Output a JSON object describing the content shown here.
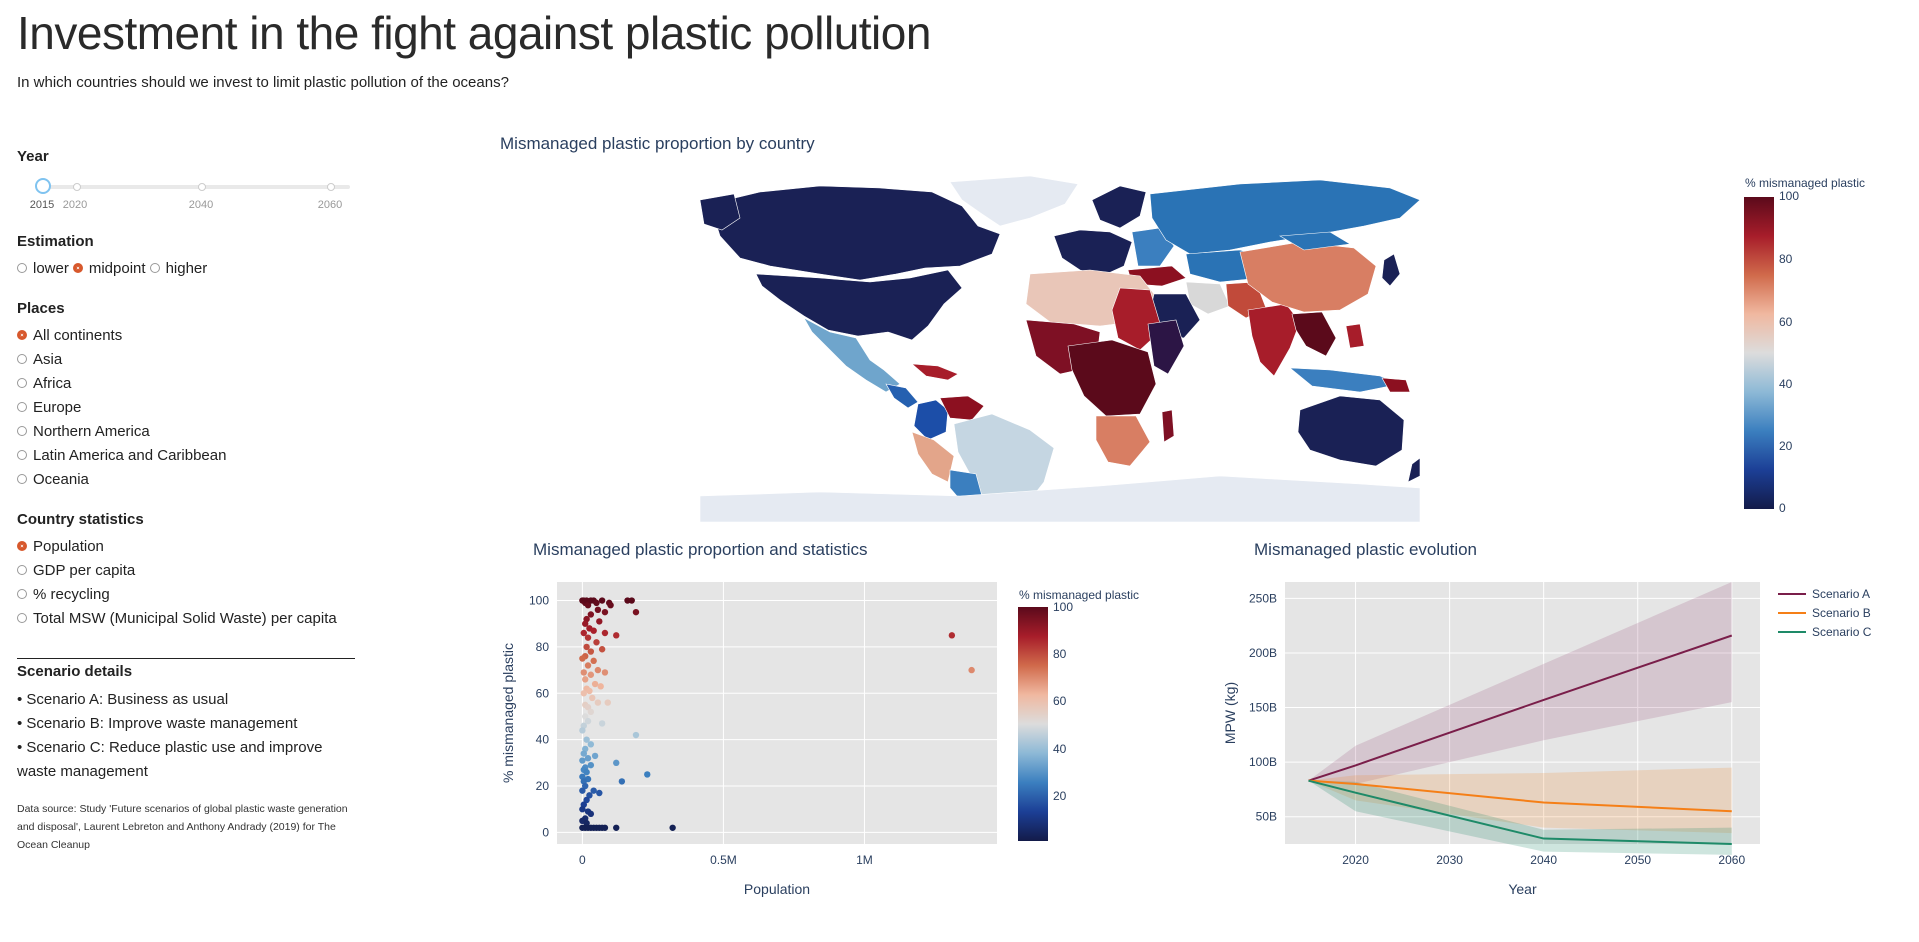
{
  "page": {
    "title": "Investment in the fight against plastic pollution",
    "subtitle": "In which countries should we invest to limit plastic pollution of the oceans?"
  },
  "year_filter": {
    "label": "Year",
    "marks": [
      "2015",
      "2020",
      "2040",
      "2060"
    ],
    "selected": "2015"
  },
  "estimation": {
    "label": "Estimation",
    "options": [
      "lower",
      "midpoint",
      "higher"
    ],
    "selected": "midpoint"
  },
  "places": {
    "label": "Places",
    "options": [
      "All continents",
      "Asia",
      "Africa",
      "Europe",
      "Northern America",
      "Latin America and Caribbean",
      "Oceania"
    ],
    "selected": "All continents"
  },
  "country_stats": {
    "label": "Country statistics",
    "options": [
      "Population",
      "GDP per capita",
      "% recycling",
      "Total MSW (Municipal Solid Waste) per capita"
    ],
    "selected": "Population"
  },
  "scenarios": {
    "heading": "Scenario details",
    "items": [
      "• Scenario A: Business as usual",
      "• Scenario B: Improve waste management",
      "• Scenario C: Reduce plastic use and improve waste management"
    ]
  },
  "source_note": "Data source: Study 'Future scenarios of global plastic waste generation and disposal', Laurent Lebreton and Anthony Andrady (2019) for The Ocean Cleanup",
  "colors": {
    "accent": "#d7582c",
    "plot_bg": "#e5e5e5",
    "scenario_a": "#7a1e4a",
    "scenario_b": "#f57f17",
    "scenario_c": "#1e8a68",
    "scale": [
      "#131b49",
      "#1c3f96",
      "#3b7fbf",
      "#8db9d6",
      "#dcdcdc",
      "#f0b8a0",
      "#d06a4b",
      "#a71d2a",
      "#5b0a1b"
    ]
  },
  "map": {
    "title": "Mismanaged plastic proportion by country",
    "colorbar_title": "% mismanaged plastic",
    "colorbar_ticks": [
      "100",
      "80",
      "60",
      "40",
      "20",
      "0"
    ]
  },
  "chart_data": [
    {
      "type": "scatter",
      "title": "Mismanaged plastic proportion and statistics",
      "xlabel": "Population",
      "ylabel": "% mismanaged plastic",
      "xlim": [
        -90000,
        1470000
      ],
      "ylim": [
        -5,
        108
      ],
      "x_ticks": [
        {
          "v": 0,
          "t": "0"
        },
        {
          "v": 500000,
          "t": "0.5M"
        },
        {
          "v": 1000000,
          "t": "1M"
        }
      ],
      "y_ticks": [
        0,
        20,
        40,
        60,
        80,
        100
      ],
      "colorbar_title": "% mismanaged plastic",
      "colorbar_ticks": [
        "100",
        "80",
        "60",
        "40",
        "20"
      ],
      "points": [
        [
          0,
          100
        ],
        [
          5000,
          100
        ],
        [
          10000,
          99
        ],
        [
          15000,
          100
        ],
        [
          20000,
          98
        ],
        [
          30000,
          100
        ],
        [
          40000,
          100
        ],
        [
          50000,
          99
        ],
        [
          70000,
          100
        ],
        [
          95000,
          99
        ],
        [
          160000,
          100
        ],
        [
          175000,
          100
        ],
        [
          190000,
          95
        ],
        [
          100000,
          98
        ],
        [
          55000,
          96
        ],
        [
          80000,
          95
        ],
        [
          30000,
          94
        ],
        [
          15000,
          92
        ],
        [
          60000,
          91
        ],
        [
          10000,
          90
        ],
        [
          25000,
          88
        ],
        [
          120000,
          85
        ],
        [
          40000,
          87
        ],
        [
          80000,
          86
        ],
        [
          5000,
          86
        ],
        [
          20000,
          84
        ],
        [
          50000,
          82
        ],
        [
          15000,
          80
        ],
        [
          70000,
          79
        ],
        [
          30000,
          78
        ],
        [
          10000,
          76
        ],
        [
          0,
          75
        ],
        [
          40000,
          74
        ],
        [
          20000,
          72
        ],
        [
          55000,
          70
        ],
        [
          5000,
          69
        ],
        [
          30000,
          68
        ],
        [
          80000,
          69
        ],
        [
          10000,
          66
        ],
        [
          45000,
          64
        ],
        [
          65000,
          63
        ],
        [
          15000,
          62
        ],
        [
          25000,
          61
        ],
        [
          5000,
          60
        ],
        [
          35000,
          58
        ],
        [
          55000,
          56
        ],
        [
          10000,
          55
        ],
        [
          20000,
          54
        ],
        [
          90000,
          56
        ],
        [
          30000,
          52
        ],
        [
          10000,
          50
        ],
        [
          70000,
          47
        ],
        [
          20000,
          48
        ],
        [
          5000,
          46
        ],
        [
          190000,
          42
        ],
        [
          0,
          44
        ],
        [
          15000,
          40
        ],
        [
          30000,
          38
        ],
        [
          10000,
          36
        ],
        [
          5000,
          34
        ],
        [
          45000,
          33
        ],
        [
          20000,
          32
        ],
        [
          0,
          31
        ],
        [
          120000,
          30
        ],
        [
          30000,
          29
        ],
        [
          10000,
          28
        ],
        [
          5000,
          27
        ],
        [
          15000,
          26
        ],
        [
          230000,
          25
        ],
        [
          0,
          24
        ],
        [
          20000,
          23
        ],
        [
          140000,
          22
        ],
        [
          5000,
          22
        ],
        [
          10000,
          20
        ],
        [
          40000,
          18
        ],
        [
          0,
          18
        ],
        [
          60000,
          17
        ],
        [
          25000,
          16
        ],
        [
          15000,
          14
        ],
        [
          5000,
          12
        ],
        [
          0,
          10
        ],
        [
          20000,
          9
        ],
        [
          30000,
          8
        ],
        [
          10000,
          6
        ],
        [
          0,
          5
        ],
        [
          15000,
          4
        ],
        [
          0,
          2
        ],
        [
          10000,
          2
        ],
        [
          20000,
          2
        ],
        [
          30000,
          2
        ],
        [
          40000,
          2
        ],
        [
          50000,
          2
        ],
        [
          60000,
          2
        ],
        [
          70000,
          2
        ],
        [
          80000,
          2
        ],
        [
          120000,
          2
        ],
        [
          320000,
          2
        ],
        [
          1310000,
          85
        ],
        [
          1380000,
          70
        ]
      ]
    },
    {
      "type": "line",
      "title": "Mismanaged plastic evolution",
      "xlabel": "Year",
      "ylabel": "MPW (kg)",
      "xlim": [
        2012.5,
        2063
      ],
      "ylim": [
        25,
        265
      ],
      "x_ticks": [
        2020,
        2030,
        2040,
        2050,
        2060
      ],
      "y_ticks": [
        {
          "v": 50,
          "t": "50B"
        },
        {
          "v": 100,
          "t": "100B"
        },
        {
          "v": 150,
          "t": "150B"
        },
        {
          "v": 200,
          "t": "200B"
        },
        {
          "v": 250,
          "t": "250B"
        }
      ],
      "series": [
        {
          "name": "Scenario A",
          "color": "#7a1e4a",
          "fill": "rgba(142,60,110,0.18)",
          "x": [
            2015,
            2020,
            2040,
            2060
          ],
          "y": [
            83,
            97,
            157,
            216
          ],
          "lower": [
            83,
            80,
            120,
            155
          ],
          "upper": [
            83,
            115,
            190,
            265
          ]
        },
        {
          "name": "Scenario B",
          "color": "#f57f17",
          "fill": "rgba(245,127,23,0.18)",
          "x": [
            2015,
            2020,
            2040,
            2060
          ],
          "y": [
            83,
            80,
            63,
            55
          ],
          "lower": [
            83,
            65,
            40,
            35
          ],
          "upper": [
            83,
            88,
            90,
            95
          ]
        },
        {
          "name": "Scenario C",
          "color": "#1e8a68",
          "fill": "rgba(30,138,104,0.22)",
          "x": [
            2015,
            2020,
            2040,
            2060
          ],
          "y": [
            83,
            72,
            30,
            25
          ],
          "lower": [
            83,
            55,
            18,
            15
          ],
          "upper": [
            83,
            82,
            38,
            40
          ]
        }
      ]
    }
  ]
}
